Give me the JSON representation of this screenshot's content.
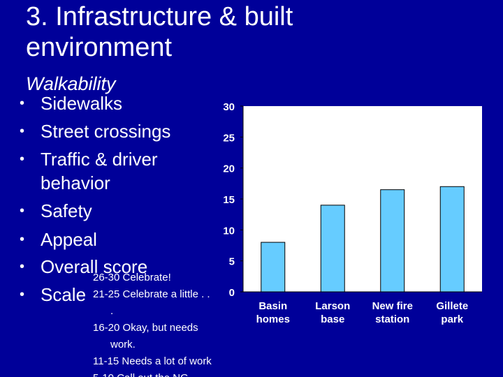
{
  "slide": {
    "title_line1": "3. Infrastructure & built",
    "title_line2": "environment",
    "subtitle": "Walkability",
    "bullets": [
      {
        "line1": "Sidewalks"
      },
      {
        "line1": "Street crossings"
      },
      {
        "line1": "Traffic & driver",
        "line2": "behavior"
      },
      {
        "line1": "Safety"
      },
      {
        "line1": "Appeal"
      },
      {
        "line1": "Overall score"
      },
      {
        "line1": "Scale"
      }
    ],
    "bullet_glyph": "•",
    "scale_notes": {
      "l1": "26-30 Celebrate!",
      "l2": "21-25 Celebrate a little . .",
      "l3": ".",
      "l4": "16-20 Okay, but needs",
      "l5": "work.",
      "l6": "11-15 Needs a lot of work",
      "l7": "5-10 Call out the NG"
    },
    "colors": {
      "background": "#000099",
      "bar": "#66ccff",
      "bar_outline": "#000000",
      "plot_bg": "#ffffff",
      "text": "#ffffff"
    }
  },
  "chart_data": {
    "type": "bar",
    "categories": [
      "Basin homes",
      "Larson base",
      "New fire station",
      "Gillete park"
    ],
    "category_lines": [
      [
        "Basin",
        "homes"
      ],
      [
        "Larson",
        "base"
      ],
      [
        "New fire",
        "station"
      ],
      [
        "Gillete",
        "park"
      ]
    ],
    "values": [
      8,
      14,
      16.5,
      17
    ],
    "ylim": [
      0,
      30
    ],
    "yticks": [
      0,
      5,
      10,
      15,
      20,
      25,
      30
    ],
    "title": "",
    "xlabel": "",
    "ylabel": "",
    "grid": false,
    "legend": false
  }
}
